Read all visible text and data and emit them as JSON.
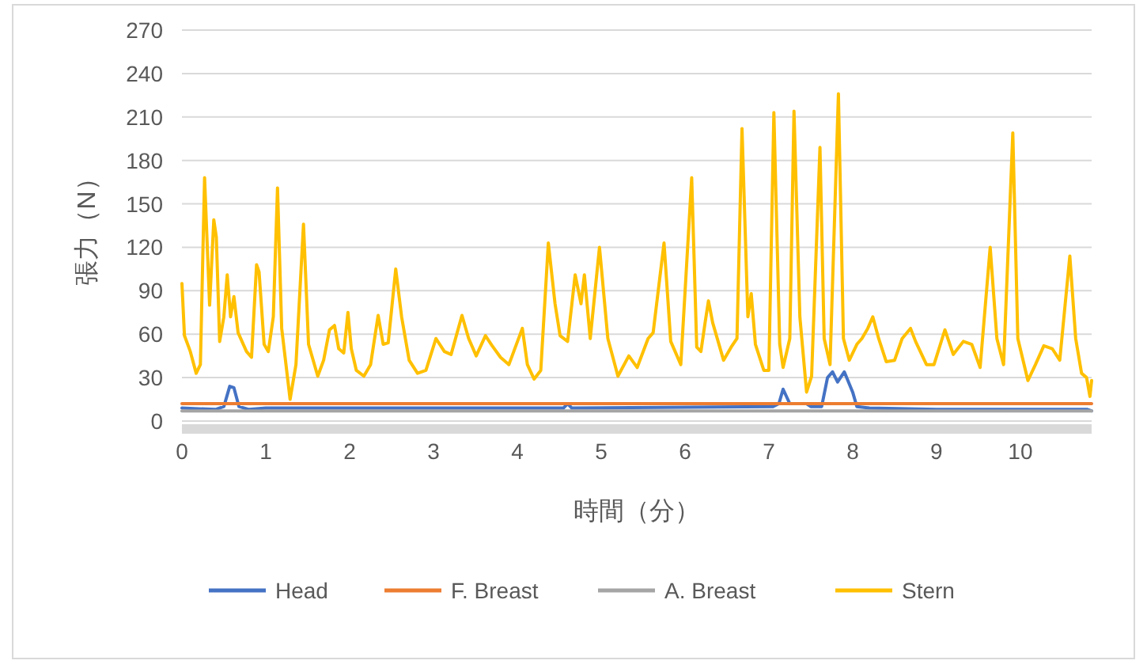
{
  "chart_data": {
    "type": "line",
    "xlabel": "時間（分）",
    "ylabel": "張力（N）",
    "xlim": [
      0,
      10.85
    ],
    "xticks": [
      0,
      1,
      2,
      3,
      4,
      5,
      6,
      7,
      8,
      9,
      10
    ],
    "ylim": [
      0,
      270
    ],
    "yticks": [
      0,
      30,
      60,
      90,
      120,
      150,
      180,
      210,
      240,
      270
    ],
    "grid": "y",
    "legend": "bottom",
    "line_style": "solid",
    "marker": "none",
    "series": [
      {
        "name": "Head",
        "color": "#4472c4",
        "x": [
          0,
          0.4,
          0.5,
          0.57,
          0.62,
          0.68,
          0.8,
          1.0,
          4.55,
          4.6,
          4.65,
          7.05,
          7.12,
          7.17,
          7.25,
          7.45,
          7.5,
          7.63,
          7.7,
          7.76,
          7.82,
          7.9,
          8.0,
          8.05,
          8.2,
          9.0,
          10.8,
          10.85
        ],
        "values": [
          9,
          8,
          10,
          24,
          23,
          10,
          8,
          9,
          9,
          12,
          9,
          10,
          12,
          22,
          12,
          12,
          10,
          10,
          30,
          34,
          27,
          34,
          20,
          10,
          9,
          8,
          8,
          7
        ]
      },
      {
        "name": "F. Breast",
        "color": "#ed7d31",
        "x": [
          0,
          10.85
        ],
        "values": [
          12,
          12
        ]
      },
      {
        "name": "A. Breast",
        "color": "#a5a5a5",
        "x": [
          0,
          10.85
        ],
        "values": [
          7,
          7
        ]
      },
      {
        "name": "Stern",
        "color": "#ffc000",
        "x": [
          0,
          0.03,
          0.1,
          0.17,
          0.22,
          0.27,
          0.33,
          0.38,
          0.41,
          0.45,
          0.5,
          0.54,
          0.58,
          0.62,
          0.67,
          0.77,
          0.83,
          0.89,
          0.92,
          0.98,
          1.03,
          1.09,
          1.14,
          1.19,
          1.29,
          1.36,
          1.45,
          1.51,
          1.62,
          1.69,
          1.76,
          1.82,
          1.87,
          1.93,
          1.98,
          2.02,
          2.08,
          2.17,
          2.25,
          2.34,
          2.4,
          2.46,
          2.55,
          2.62,
          2.71,
          2.81,
          2.91,
          3.03,
          3.13,
          3.21,
          3.34,
          3.42,
          3.51,
          3.62,
          3.7,
          3.8,
          3.9,
          4.06,
          4.12,
          4.2,
          4.28,
          4.37,
          4.45,
          4.51,
          4.6,
          4.69,
          4.76,
          4.8,
          4.87,
          4.98,
          5.08,
          5.2,
          5.33,
          5.43,
          5.56,
          5.62,
          5.75,
          5.83,
          5.95,
          6.08,
          6.14,
          6.19,
          6.24,
          6.28,
          6.33,
          6.46,
          6.55,
          6.62,
          6.68,
          6.75,
          6.79,
          6.84,
          6.94,
          7.0,
          7.06,
          7.13,
          7.17,
          7.25,
          7.3,
          7.37,
          7.45,
          7.51,
          7.61,
          7.66,
          7.73,
          7.83,
          7.89,
          7.96,
          8.05,
          8.11,
          8.18,
          8.24,
          8.31,
          8.4,
          8.5,
          8.59,
          8.69,
          8.75,
          8.88,
          8.97,
          9.1,
          9.2,
          9.32,
          9.42,
          9.52,
          9.64,
          9.72,
          9.8,
          9.91,
          9.97,
          10.09,
          10.18,
          10.28,
          10.38,
          10.47,
          10.59,
          10.66,
          10.73,
          10.79,
          10.83,
          10.85
        ],
        "values": [
          95,
          59,
          48,
          33,
          39,
          168,
          80,
          139,
          127,
          55,
          72,
          101,
          72,
          86,
          61,
          48,
          44,
          108,
          103,
          53,
          48,
          72,
          161,
          64,
          15,
          39,
          136,
          53,
          31,
          42,
          63,
          66,
          50,
          47,
          75,
          50,
          35,
          31,
          39,
          73,
          53,
          54,
          105,
          72,
          42,
          33,
          35,
          57,
          48,
          46,
          73,
          57,
          45,
          59,
          52,
          44,
          39,
          64,
          39,
          29,
          35,
          123,
          81,
          59,
          55,
          101,
          81,
          101,
          57,
          120,
          57,
          31,
          45,
          37,
          57,
          61,
          123,
          55,
          39,
          168,
          51,
          48,
          68,
          83,
          68,
          42,
          51,
          57,
          202,
          72,
          88,
          53,
          35,
          35,
          213,
          53,
          37,
          57,
          214,
          72,
          20,
          31,
          189,
          57,
          39,
          226,
          57,
          42,
          53,
          57,
          64,
          72,
          57,
          41,
          42,
          57,
          64,
          55,
          39,
          39,
          63,
          46,
          55,
          53,
          37,
          120,
          57,
          39,
          199,
          57,
          28,
          39,
          52,
          50,
          42,
          114,
          57,
          33,
          30,
          17,
          28
        ]
      }
    ]
  }
}
